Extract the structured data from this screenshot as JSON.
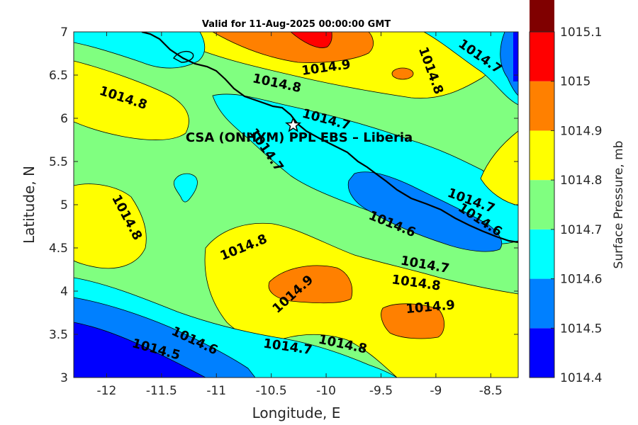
{
  "title": "Valid for 11-Aug-2025 00:00:00 GMT",
  "site_label": "CSA (ONHYM) PPL EBS  – Liberia",
  "chart_data": {
    "type": "contour",
    "xlabel": "Longitude, E",
    "ylabel": "Latitude, N",
    "xlim": [
      -12.3,
      -8.25
    ],
    "ylim": [
      3,
      7
    ],
    "xticks": [
      -12,
      -11.5,
      -11,
      -10.5,
      -10,
      -9.5,
      -9,
      -8.5
    ],
    "yticks": [
      3,
      3.5,
      4,
      4.5,
      5,
      5.5,
      6,
      6.5,
      7
    ],
    "site_marker": {
      "lon": -10.3,
      "lat": 5.92
    },
    "colorbar": {
      "label": "Surface Pressure, mb",
      "levels": [
        1014.4,
        1014.5,
        1014.6,
        1014.7,
        1014.8,
        1014.9,
        1015,
        1015.1
      ],
      "colors": [
        "#0000ff",
        "#0080ff",
        "#00ffff",
        "#80ff80",
        "#ffff00",
        "#ff8000",
        "#ff0000",
        "#800000"
      ]
    },
    "contour_labels": [
      {
        "text": "1014.9",
        "lon": -10.0,
        "lat": 6.58,
        "angle": -8
      },
      {
        "text": "1014.8",
        "lon": -10.45,
        "lat": 6.4,
        "angle": 12
      },
      {
        "text": "1014.8",
        "lon": -11.85,
        "lat": 6.23,
        "angle": 18
      },
      {
        "text": "1014.7",
        "lon": -10.0,
        "lat": 5.98,
        "angle": 15
      },
      {
        "text": "1014.7",
        "lon": -10.55,
        "lat": 5.63,
        "angle": 55
      },
      {
        "text": "1014.8",
        "lon": -9.05,
        "lat": 6.55,
        "angle": 70
      },
      {
        "text": "1014.7",
        "lon": -8.6,
        "lat": 6.71,
        "angle": 35
      },
      {
        "text": "1014.8",
        "lon": -11.82,
        "lat": 4.85,
        "angle": 62
      },
      {
        "text": "1014.8",
        "lon": -10.75,
        "lat": 4.5,
        "angle": -22
      },
      {
        "text": "1014.6",
        "lon": -9.4,
        "lat": 4.77,
        "angle": 22
      },
      {
        "text": "1014.7",
        "lon": -8.68,
        "lat": 5.04,
        "angle": 20
      },
      {
        "text": "1014.6",
        "lon": -8.6,
        "lat": 4.82,
        "angle": 33
      },
      {
        "text": "1014.9",
        "lon": -10.3,
        "lat": 3.96,
        "angle": -42
      },
      {
        "text": "1014.7",
        "lon": -9.1,
        "lat": 4.3,
        "angle": 10
      },
      {
        "text": "1014.8",
        "lon": -9.18,
        "lat": 4.09,
        "angle": 8
      },
      {
        "text": "1014.9",
        "lon": -9.05,
        "lat": 3.81,
        "angle": -5
      },
      {
        "text": "1014.6",
        "lon": -11.2,
        "lat": 3.42,
        "angle": 25
      },
      {
        "text": "1014.5",
        "lon": -11.55,
        "lat": 3.32,
        "angle": 15
      },
      {
        "text": "1014.7",
        "lon": -10.35,
        "lat": 3.35,
        "angle": 8
      },
      {
        "text": "1014.8",
        "lon": -9.85,
        "lat": 3.38,
        "angle": 12
      }
    ]
  }
}
